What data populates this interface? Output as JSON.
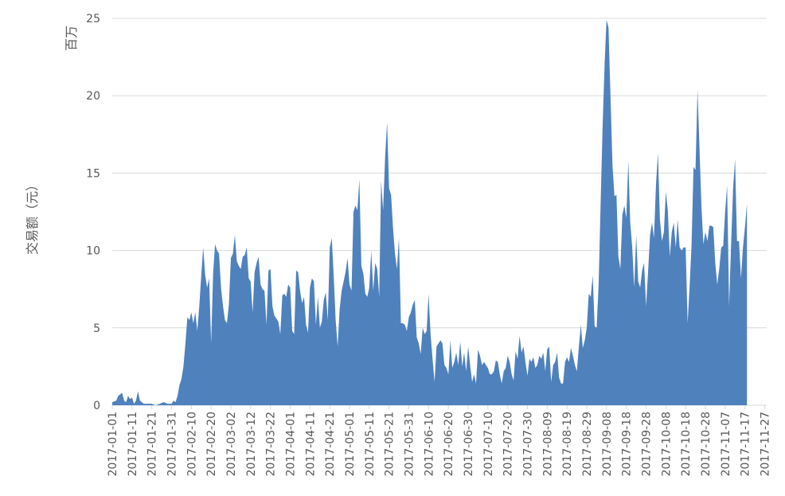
{
  "chart_data": {
    "type": "area",
    "color": "#4f81bd",
    "grid": true,
    "ylabel": "交易额（元）",
    "yunit": "百万",
    "ylim": [
      0,
      25
    ],
    "yticks": [
      "0",
      "5",
      "10",
      "15",
      "20",
      "25"
    ],
    "xlim": [
      "2017-01-01",
      "2017-11-28"
    ],
    "xticks": [
      "2017-01-01",
      "2017-01-11",
      "2017-01-21",
      "2017-01-31",
      "2017-02-10",
      "2017-02-20",
      "2017-03-02",
      "2017-03-12",
      "2017-03-22",
      "2017-04-01",
      "2017-04-11",
      "2017-04-21",
      "2017-05-01",
      "2017-05-11",
      "2017-05-21",
      "2017-05-31",
      "2017-06-10",
      "2017-06-20",
      "2017-06-30",
      "2017-07-10",
      "2017-07-20",
      "2017-07-30",
      "2017-08-09",
      "2017-08-19",
      "2017-08-29",
      "2017-09-08",
      "2017-09-18",
      "2017-09-28",
      "2017-10-08",
      "2017-10-18",
      "2017-10-28",
      "2017-11-07",
      "2017-11-17",
      "2017-11-27"
    ],
    "points": [
      [
        "2017-01-01",
        0.2
      ],
      [
        "2017-01-03",
        0.3
      ],
      [
        "2017-01-04",
        0.6
      ],
      [
        "2017-01-05",
        0.7
      ],
      [
        "2017-01-06",
        0.8
      ],
      [
        "2017-01-07",
        0.3
      ],
      [
        "2017-01-08",
        0.2
      ],
      [
        "2017-01-09",
        0.6
      ],
      [
        "2017-01-10",
        0.4
      ],
      [
        "2017-01-11",
        0.5
      ],
      [
        "2017-01-12",
        0.1
      ],
      [
        "2017-01-13",
        0.3
      ],
      [
        "2017-01-14",
        0.9
      ],
      [
        "2017-01-15",
        0.3
      ],
      [
        "2017-01-17",
        0.1
      ],
      [
        "2017-01-19",
        0.1
      ],
      [
        "2017-01-21",
        0.1
      ],
      [
        "2017-01-23",
        0.0
      ],
      [
        "2017-01-25",
        0.1
      ],
      [
        "2017-01-27",
        0.2
      ],
      [
        "2017-01-29",
        0.1
      ],
      [
        "2017-01-31",
        0.1
      ],
      [
        "2017-02-01",
        0.3
      ],
      [
        "2017-02-02",
        0.2
      ],
      [
        "2017-02-03",
        0.6
      ],
      [
        "2017-02-04",
        1.3
      ],
      [
        "2017-02-05",
        1.7
      ],
      [
        "2017-02-06",
        2.5
      ],
      [
        "2017-02-07",
        4.0
      ],
      [
        "2017-02-08",
        5.7
      ],
      [
        "2017-02-09",
        5.5
      ],
      [
        "2017-02-10",
        6.0
      ],
      [
        "2017-02-11",
        5.3
      ],
      [
        "2017-02-12",
        6.0
      ],
      [
        "2017-02-13",
        4.8
      ],
      [
        "2017-02-14",
        6.4
      ],
      [
        "2017-02-15",
        8.4
      ],
      [
        "2017-02-16",
        10.2
      ],
      [
        "2017-02-17",
        8.4
      ],
      [
        "2017-02-18",
        7.6
      ],
      [
        "2017-02-19",
        8.2
      ],
      [
        "2017-02-20",
        4.0
      ],
      [
        "2017-02-21",
        8.5
      ],
      [
        "2017-02-22",
        10.4
      ],
      [
        "2017-02-23",
        10.0
      ],
      [
        "2017-02-24",
        9.8
      ],
      [
        "2017-02-25",
        7.6
      ],
      [
        "2017-02-26",
        6.4
      ],
      [
        "2017-02-27",
        5.5
      ],
      [
        "2017-02-28",
        5.3
      ],
      [
        "2017-03-01",
        6.5
      ],
      [
        "2017-03-02",
        9.5
      ],
      [
        "2017-03-03",
        9.8
      ],
      [
        "2017-03-04",
        11.0
      ],
      [
        "2017-03-05",
        9.3
      ],
      [
        "2017-03-06",
        9.0
      ],
      [
        "2017-03-07",
        8.8
      ],
      [
        "2017-03-08",
        9.6
      ],
      [
        "2017-03-09",
        9.7
      ],
      [
        "2017-03-10",
        10.2
      ],
      [
        "2017-03-11",
        8.2
      ],
      [
        "2017-03-12",
        8.0
      ],
      [
        "2017-03-13",
        6.0
      ],
      [
        "2017-03-14",
        8.6
      ],
      [
        "2017-03-15",
        9.2
      ],
      [
        "2017-03-16",
        9.6
      ],
      [
        "2017-03-17",
        7.8
      ],
      [
        "2017-03-18",
        7.5
      ],
      [
        "2017-03-19",
        7.4
      ],
      [
        "2017-03-20",
        5.2
      ],
      [
        "2017-03-21",
        8.7
      ],
      [
        "2017-03-22",
        8.8
      ],
      [
        "2017-03-23",
        6.4
      ],
      [
        "2017-03-24",
        5.8
      ],
      [
        "2017-03-25",
        5.6
      ],
      [
        "2017-03-26",
        5.4
      ],
      [
        "2017-03-27",
        4.6
      ],
      [
        "2017-03-28",
        7.1
      ],
      [
        "2017-03-29",
        7.2
      ],
      [
        "2017-03-30",
        7.0
      ],
      [
        "2017-03-31",
        7.8
      ],
      [
        "2017-04-01",
        7.6
      ],
      [
        "2017-04-02",
        4.8
      ],
      [
        "2017-04-03",
        4.6
      ],
      [
        "2017-04-04",
        8.7
      ],
      [
        "2017-04-05",
        8.6
      ],
      [
        "2017-04-06",
        7.4
      ],
      [
        "2017-04-07",
        6.6
      ],
      [
        "2017-04-08",
        7.0
      ],
      [
        "2017-04-09",
        5.2
      ],
      [
        "2017-04-10",
        4.7
      ],
      [
        "2017-04-11",
        7.6
      ],
      [
        "2017-04-12",
        8.2
      ],
      [
        "2017-04-13",
        8.0
      ],
      [
        "2017-04-14",
        5.2
      ],
      [
        "2017-04-15",
        7.0
      ],
      [
        "2017-04-16",
        5.0
      ],
      [
        "2017-04-17",
        5.4
      ],
      [
        "2017-04-18",
        6.8
      ],
      [
        "2017-04-19",
        7.3
      ],
      [
        "2017-04-20",
        5.5
      ],
      [
        "2017-04-21",
        10.2
      ],
      [
        "2017-04-22",
        10.8
      ],
      [
        "2017-04-23",
        8.4
      ],
      [
        "2017-04-24",
        5.5
      ],
      [
        "2017-04-25",
        3.8
      ],
      [
        "2017-04-26",
        6.2
      ],
      [
        "2017-04-27",
        7.4
      ],
      [
        "2017-04-28",
        8.0
      ],
      [
        "2017-04-29",
        8.6
      ],
      [
        "2017-04-30",
        9.5
      ],
      [
        "2017-05-01",
        7.8
      ],
      [
        "2017-05-02",
        7.4
      ],
      [
        "2017-05-03",
        12.5
      ],
      [
        "2017-05-04",
        12.9
      ],
      [
        "2017-05-05",
        12.6
      ],
      [
        "2017-05-06",
        14.6
      ],
      [
        "2017-05-07",
        9.0
      ],
      [
        "2017-05-08",
        8.5
      ],
      [
        "2017-05-09",
        7.2
      ],
      [
        "2017-05-10",
        7.0
      ],
      [
        "2017-05-11",
        7.6
      ],
      [
        "2017-05-12",
        10.0
      ],
      [
        "2017-05-13",
        7.4
      ],
      [
        "2017-05-14",
        9.2
      ],
      [
        "2017-05-15",
        8.8
      ],
      [
        "2017-05-16",
        7.0
      ],
      [
        "2017-05-17",
        14.5
      ],
      [
        "2017-05-18",
        12.6
      ],
      [
        "2017-05-19",
        16.0
      ],
      [
        "2017-05-20",
        18.3
      ],
      [
        "2017-05-21",
        14.0
      ],
      [
        "2017-05-22",
        13.6
      ],
      [
        "2017-05-23",
        11.5
      ],
      [
        "2017-05-24",
        9.8
      ],
      [
        "2017-05-25",
        8.8
      ],
      [
        "2017-05-26",
        10.8
      ],
      [
        "2017-05-27",
        5.3
      ],
      [
        "2017-05-28",
        5.3
      ],
      [
        "2017-05-29",
        5.2
      ],
      [
        "2017-05-30",
        4.8
      ],
      [
        "2017-05-31",
        5.7
      ],
      [
        "2017-06-01",
        6.0
      ],
      [
        "2017-06-02",
        6.5
      ],
      [
        "2017-06-03",
        6.8
      ],
      [
        "2017-06-04",
        4.4
      ],
      [
        "2017-06-05",
        4.0
      ],
      [
        "2017-06-06",
        3.3
      ],
      [
        "2017-06-07",
        5.0
      ],
      [
        "2017-06-08",
        4.6
      ],
      [
        "2017-06-09",
        4.8
      ],
      [
        "2017-06-10",
        7.2
      ],
      [
        "2017-06-11",
        4.6
      ],
      [
        "2017-06-12",
        3.0
      ],
      [
        "2017-06-13",
        1.5
      ],
      [
        "2017-06-14",
        3.8
      ],
      [
        "2017-06-15",
        4.0
      ],
      [
        "2017-06-16",
        4.2
      ],
      [
        "2017-06-17",
        4.0
      ],
      [
        "2017-06-18",
        2.6
      ],
      [
        "2017-06-19",
        2.4
      ],
      [
        "2017-06-20",
        2.0
      ],
      [
        "2017-06-21",
        4.2
      ],
      [
        "2017-06-22",
        2.4
      ],
      [
        "2017-06-23",
        2.8
      ],
      [
        "2017-06-24",
        3.4
      ],
      [
        "2017-06-25",
        2.6
      ],
      [
        "2017-06-26",
        4.1
      ],
      [
        "2017-06-27",
        2.5
      ],
      [
        "2017-06-28",
        3.4
      ],
      [
        "2017-06-29",
        2.2
      ],
      [
        "2017-06-30",
        3.8
      ],
      [
        "2017-07-01",
        2.6
      ],
      [
        "2017-07-02",
        1.5
      ],
      [
        "2017-07-03",
        2.0
      ],
      [
        "2017-07-04",
        1.4
      ],
      [
        "2017-07-05",
        3.6
      ],
      [
        "2017-07-06",
        3.2
      ],
      [
        "2017-07-07",
        2.6
      ],
      [
        "2017-07-08",
        2.8
      ],
      [
        "2017-07-09",
        2.6
      ],
      [
        "2017-07-10",
        2.4
      ],
      [
        "2017-07-11",
        2.0
      ],
      [
        "2017-07-12",
        2.0
      ],
      [
        "2017-07-13",
        2.2
      ],
      [
        "2017-07-14",
        2.9
      ],
      [
        "2017-07-15",
        2.8
      ],
      [
        "2017-07-16",
        2.0
      ],
      [
        "2017-07-17",
        1.4
      ],
      [
        "2017-07-18",
        2.2
      ],
      [
        "2017-07-19",
        2.4
      ],
      [
        "2017-07-20",
        3.2
      ],
      [
        "2017-07-21",
        2.8
      ],
      [
        "2017-07-22",
        2.0
      ],
      [
        "2017-07-23",
        1.6
      ],
      [
        "2017-07-24",
        3.5
      ],
      [
        "2017-07-25",
        3.0
      ],
      [
        "2017-07-26",
        4.5
      ],
      [
        "2017-07-27",
        3.4
      ],
      [
        "2017-07-28",
        3.8
      ],
      [
        "2017-07-29",
        2.8
      ],
      [
        "2017-07-30",
        1.9
      ],
      [
        "2017-07-31",
        3.0
      ],
      [
        "2017-08-01",
        2.8
      ],
      [
        "2017-08-02",
        3.1
      ],
      [
        "2017-08-03",
        2.4
      ],
      [
        "2017-08-04",
        2.6
      ],
      [
        "2017-08-05",
        3.2
      ],
      [
        "2017-08-06",
        3.0
      ],
      [
        "2017-08-07",
        3.4
      ],
      [
        "2017-08-08",
        2.2
      ],
      [
        "2017-08-09",
        3.6
      ],
      [
        "2017-08-10",
        3.8
      ],
      [
        "2017-08-11",
        1.5
      ],
      [
        "2017-08-12",
        2.6
      ],
      [
        "2017-08-13",
        2.8
      ],
      [
        "2017-08-14",
        3.4
      ],
      [
        "2017-08-15",
        1.8
      ],
      [
        "2017-08-16",
        1.4
      ],
      [
        "2017-08-17",
        1.4
      ],
      [
        "2017-08-18",
        2.8
      ],
      [
        "2017-08-19",
        3.1
      ],
      [
        "2017-08-20",
        2.8
      ],
      [
        "2017-08-21",
        3.7
      ],
      [
        "2017-08-22",
        3.2
      ],
      [
        "2017-08-23",
        2.6
      ],
      [
        "2017-08-24",
        2.2
      ],
      [
        "2017-08-25",
        3.8
      ],
      [
        "2017-08-26",
        5.2
      ],
      [
        "2017-08-27",
        3.7
      ],
      [
        "2017-08-28",
        4.2
      ],
      [
        "2017-08-29",
        5.0
      ],
      [
        "2017-08-30",
        7.2
      ],
      [
        "2017-08-31",
        7.0
      ],
      [
        "2017-09-01",
        8.4
      ],
      [
        "2017-09-02",
        5.1
      ],
      [
        "2017-09-03",
        5.0
      ],
      [
        "2017-09-04",
        7.8
      ],
      [
        "2017-09-05",
        13.0
      ],
      [
        "2017-09-06",
        18.0
      ],
      [
        "2017-09-07",
        22.0
      ],
      [
        "2017-09-08",
        24.9
      ],
      [
        "2017-09-09",
        24.4
      ],
      [
        "2017-09-10",
        20.0
      ],
      [
        "2017-09-11",
        15.5
      ],
      [
        "2017-09-12",
        13.5
      ],
      [
        "2017-09-13",
        13.6
      ],
      [
        "2017-09-14",
        9.6
      ],
      [
        "2017-09-15",
        8.8
      ],
      [
        "2017-09-16",
        12.3
      ],
      [
        "2017-09-17",
        12.9
      ],
      [
        "2017-09-18",
        12.1
      ],
      [
        "2017-09-19",
        15.8
      ],
      [
        "2017-09-20",
        11.8
      ],
      [
        "2017-09-21",
        10.2
      ],
      [
        "2017-09-22",
        7.6
      ],
      [
        "2017-09-23",
        11.0
      ],
      [
        "2017-09-24",
        8.0
      ],
      [
        "2017-09-25",
        7.6
      ],
      [
        "2017-09-26",
        8.7
      ],
      [
        "2017-09-27",
        9.2
      ],
      [
        "2017-09-28",
        6.4
      ],
      [
        "2017-09-29",
        8.6
      ],
      [
        "2017-09-30",
        11.0
      ],
      [
        "2017-10-01",
        11.8
      ],
      [
        "2017-10-02",
        10.8
      ],
      [
        "2017-10-03",
        14.2
      ],
      [
        "2017-10-04",
        16.3
      ],
      [
        "2017-10-05",
        12.0
      ],
      [
        "2017-10-06",
        10.6
      ],
      [
        "2017-10-07",
        11.2
      ],
      [
        "2017-10-08",
        13.8
      ],
      [
        "2017-10-09",
        12.6
      ],
      [
        "2017-10-10",
        9.6
      ],
      [
        "2017-10-11",
        11.2
      ],
      [
        "2017-10-12",
        11.8
      ],
      [
        "2017-10-13",
        10.2
      ],
      [
        "2017-10-14",
        12.0
      ],
      [
        "2017-10-15",
        10.2
      ],
      [
        "2017-10-16",
        10.0
      ],
      [
        "2017-10-17",
        10.2
      ],
      [
        "2017-10-18",
        10.2
      ],
      [
        "2017-10-19",
        5.3
      ],
      [
        "2017-10-20",
        7.6
      ],
      [
        "2017-10-21",
        10.3
      ],
      [
        "2017-10-22",
        15.4
      ],
      [
        "2017-10-23",
        15.2
      ],
      [
        "2017-10-24",
        20.4
      ],
      [
        "2017-10-25",
        16.6
      ],
      [
        "2017-10-26",
        12.9
      ],
      [
        "2017-10-27",
        10.4
      ],
      [
        "2017-10-28",
        11.2
      ],
      [
        "2017-10-29",
        10.6
      ],
      [
        "2017-10-30",
        11.6
      ],
      [
        "2017-10-31",
        11.6
      ],
      [
        "2017-11-01",
        11.5
      ],
      [
        "2017-11-02",
        9.2
      ],
      [
        "2017-11-03",
        7.8
      ],
      [
        "2017-11-04",
        8.8
      ],
      [
        "2017-11-05",
        10.2
      ],
      [
        "2017-11-06",
        10.3
      ],
      [
        "2017-11-07",
        12.5
      ],
      [
        "2017-11-08",
        14.2
      ],
      [
        "2017-11-09",
        6.4
      ],
      [
        "2017-11-10",
        10.4
      ],
      [
        "2017-11-11",
        14.0
      ],
      [
        "2017-11-12",
        15.9
      ],
      [
        "2017-11-13",
        10.6
      ],
      [
        "2017-11-14",
        10.6
      ],
      [
        "2017-11-15",
        8.2
      ],
      [
        "2017-11-16",
        10.2
      ],
      [
        "2017-11-17",
        11.5
      ],
      [
        "2017-11-18",
        13.0
      ]
    ]
  }
}
